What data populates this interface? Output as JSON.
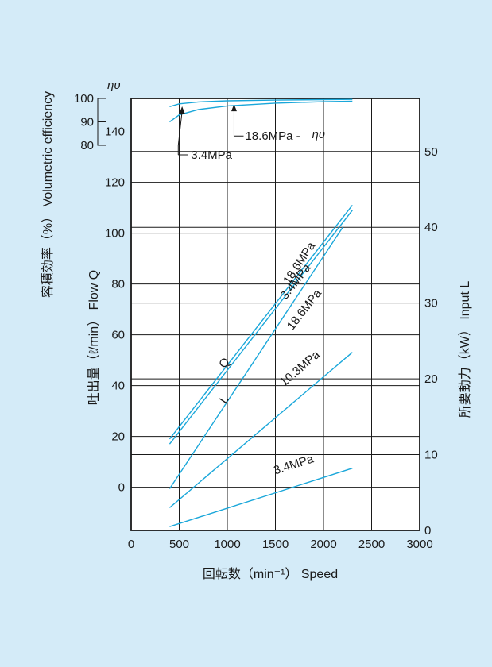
{
  "chart_data": {
    "type": "line",
    "xlabel": "回転数（min⁻¹） Speed",
    "ylabel_flow": "吐出量（ℓ/min） Flow Q",
    "ylabel_efficiency": "容積効率（%） Volumetric efficiency",
    "ylabel_input": "所要動力（kW） Input L",
    "eta_symbol": "ηυ",
    "x_ticks": [
      0,
      500,
      1000,
      1500,
      2000,
      2500,
      3000
    ],
    "flow_ticks": [
      0,
      20,
      40,
      60,
      80,
      100,
      120,
      140
    ],
    "input_ticks": [
      0,
      10,
      20,
      30,
      40,
      50
    ],
    "efficiency_ticks": [
      80,
      90,
      100
    ],
    "xlim": [
      0,
      3000
    ],
    "flow_ylim": [
      -17,
      153
    ],
    "input_ylim": [
      0,
      57
    ],
    "efficiency_ylim": [
      80,
      100
    ],
    "curve_labels": {
      "Q": "Q",
      "L": "L",
      "eta": "18.6MPa -",
      "eta_low": "3.4MPa",
      "flow_3_4": "3.4MPa",
      "flow_18_6": "18.6MPa",
      "input_18_6": "18.6MPa",
      "input_10_3": "10.3MPa",
      "input_3_4": "3.4MPa"
    },
    "series": [
      {
        "group": "efficiency",
        "pressure": "3.4MPa",
        "x": [
          400,
          500,
          700,
          1000,
          1500,
          2000,
          2300
        ],
        "y": [
          96.5,
          97.7,
          98.5,
          99.0,
          99.3,
          99.5,
          99.6
        ]
      },
      {
        "group": "efficiency",
        "pressure": "18.6MPa",
        "x": [
          400,
          500,
          700,
          1000,
          1500,
          2000,
          2300
        ],
        "y": [
          90.0,
          93.0,
          95.3,
          96.8,
          98.0,
          98.6,
          98.8
        ]
      },
      {
        "group": "flow",
        "pressure": "3.4MPa",
        "x": [
          400,
          2300
        ],
        "y": [
          19,
          111
        ]
      },
      {
        "group": "flow",
        "pressure": "18.6MPa",
        "x": [
          400,
          2300
        ],
        "y": [
          17,
          109
        ]
      },
      {
        "group": "input",
        "pressure": "18.6MPa",
        "x": [
          400,
          2200
        ],
        "y": [
          5.5,
          40
        ]
      },
      {
        "group": "input",
        "pressure": "10.3MPa",
        "x": [
          400,
          2300
        ],
        "y": [
          3.0,
          23.5
        ]
      },
      {
        "group": "input",
        "pressure": "3.4MPa",
        "x": [
          400,
          2300
        ],
        "y": [
          0.5,
          8.2
        ]
      }
    ]
  }
}
